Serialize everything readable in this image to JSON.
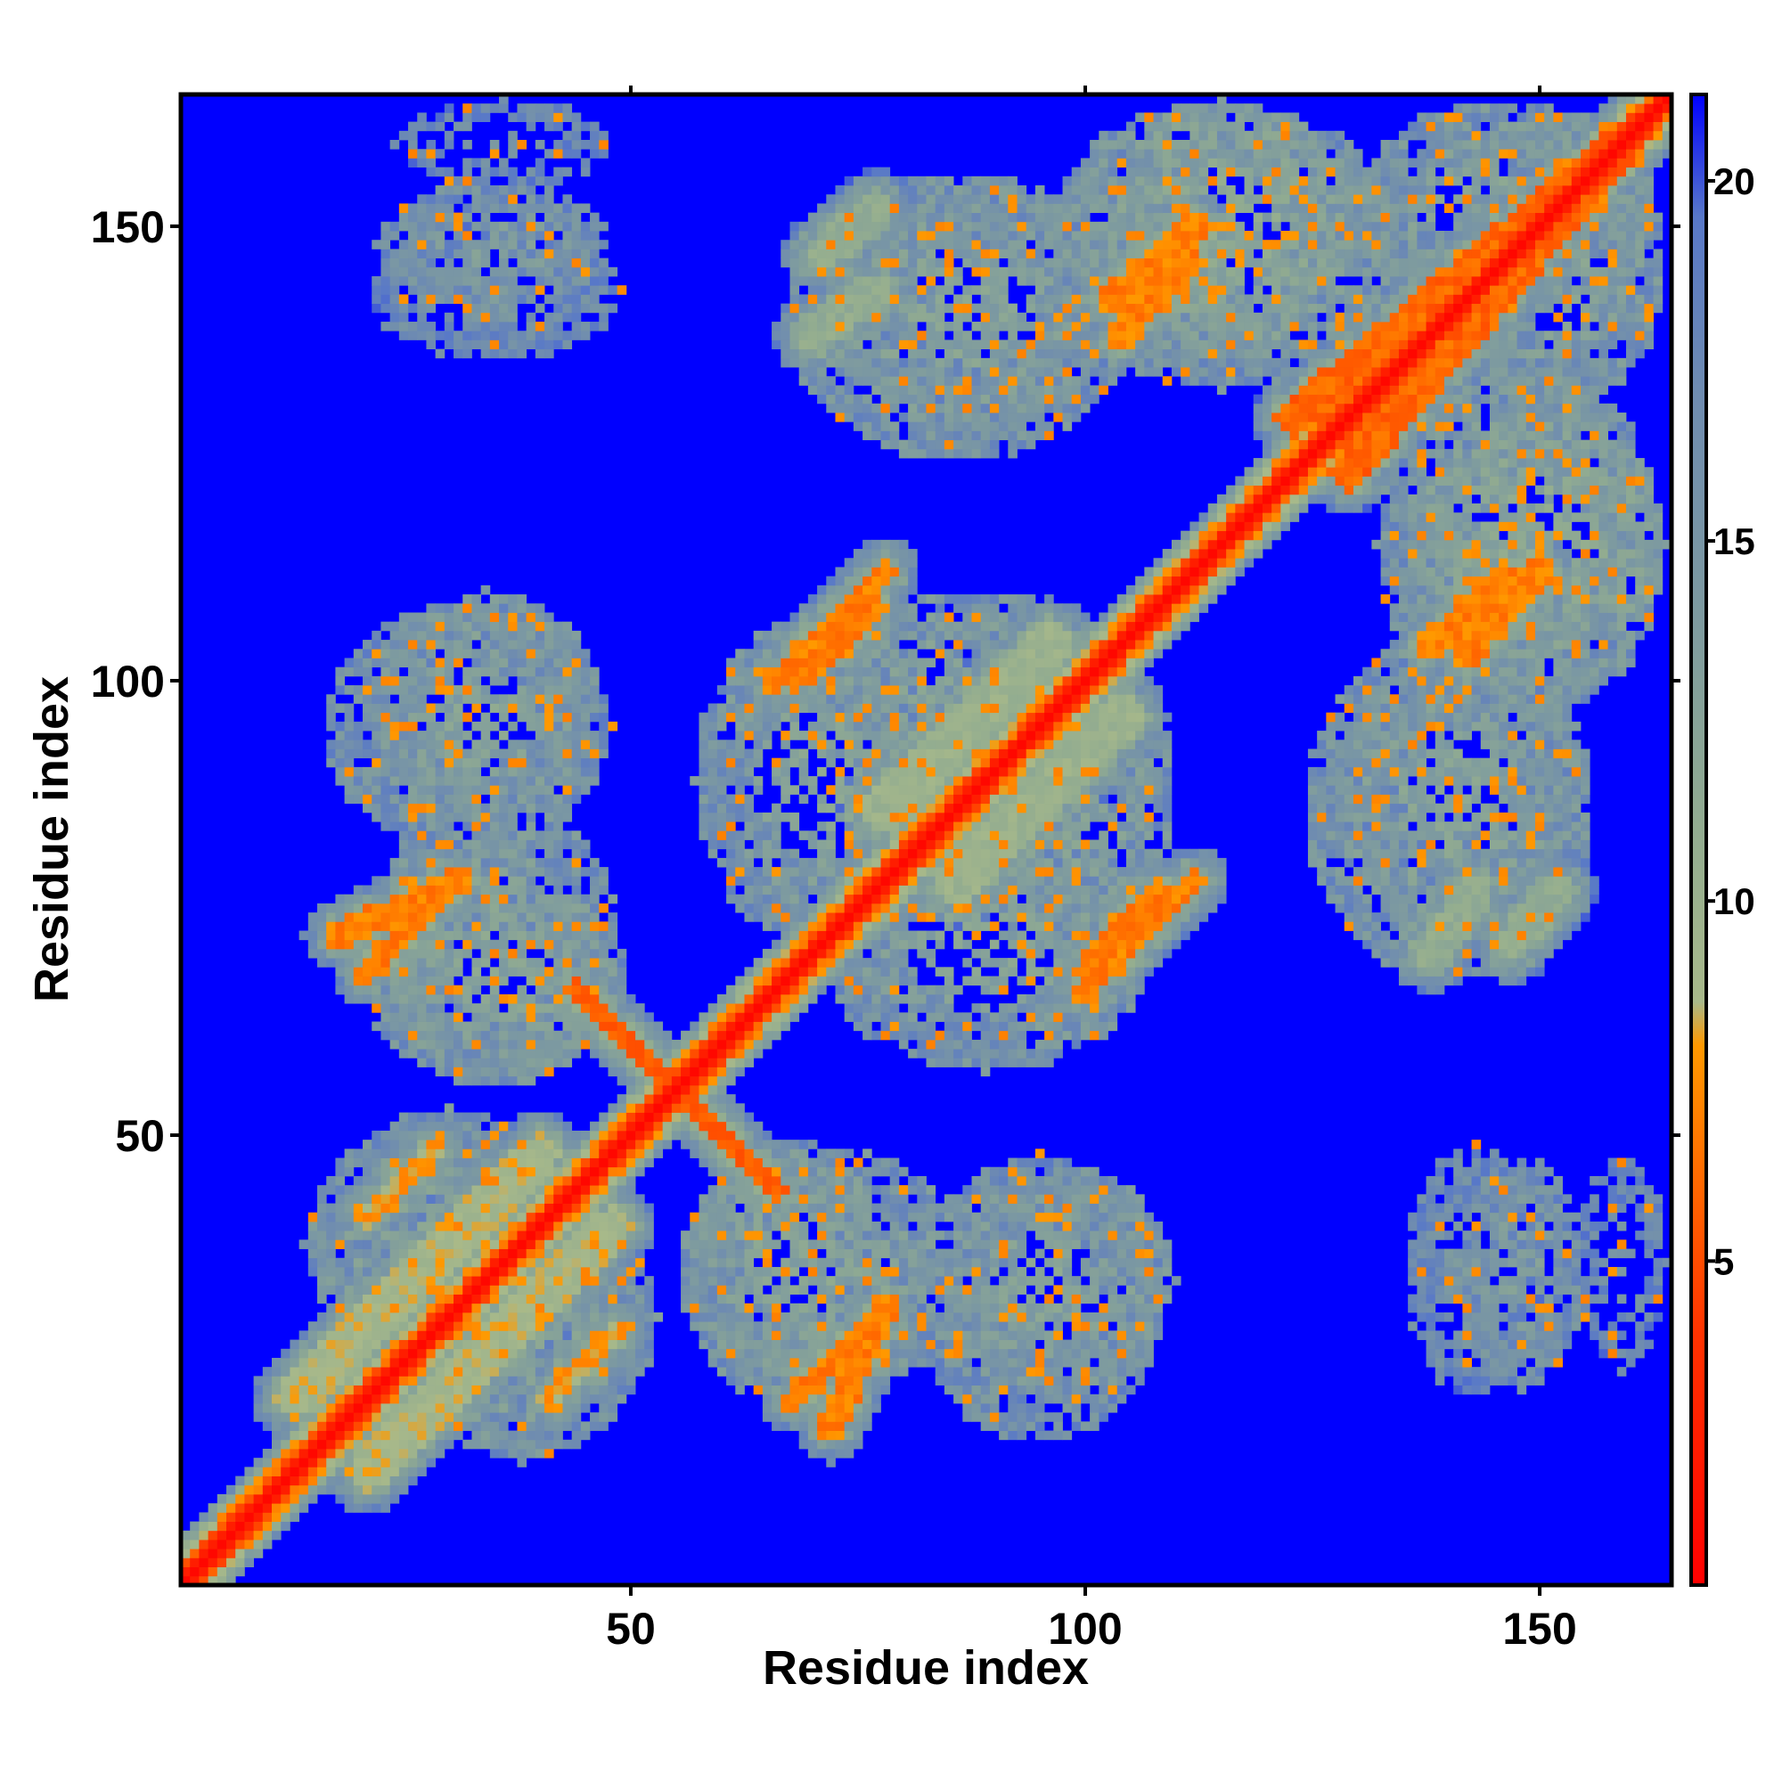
{
  "chart_data": {
    "type": "heatmap",
    "title": "",
    "xlabel": "Residue index",
    "ylabel": "Residue index",
    "n_residues": 164,
    "xlim": [
      1,
      164
    ],
    "ylim": [
      1,
      164
    ],
    "x_ticks": [
      50,
      100,
      150
    ],
    "y_ticks": [
      50,
      100,
      150
    ],
    "x_tick_labels": [
      "50",
      "100",
      "150"
    ],
    "y_tick_labels": [
      "50",
      "100",
      "150"
    ],
    "colorbar": {
      "range": [
        0.5,
        21.2
      ],
      "ticks": [
        5,
        10,
        15,
        20
      ],
      "tick_labels": [
        "5",
        "10",
        "15",
        "20"
      ],
      "stops": [
        {
          "value": 0.5,
          "color": "#ff0000"
        },
        {
          "value": 4.0,
          "color": "#ff3300"
        },
        {
          "value": 6.0,
          "color": "#ff6600"
        },
        {
          "value": 8.0,
          "color": "#ff9900"
        },
        {
          "value": 8.6,
          "color": "#a8b98a"
        },
        {
          "value": 11.0,
          "color": "#92ac90"
        },
        {
          "value": 14.0,
          "color": "#7d9aa0"
        },
        {
          "value": 17.0,
          "color": "#6f8cb0"
        },
        {
          "value": 19.5,
          "color": "#5878c8"
        },
        {
          "value": 21.2,
          "color": "#0000ff"
        }
      ]
    },
    "background_value": 21.2,
    "diagonal": {
      "core_value": 2.5,
      "band_width": 3
    },
    "contact_segments": [
      {
        "start": [
          13,
          21
        ],
        "end": [
          40,
          48
        ],
        "value": 9,
        "width": 2.2,
        "note": "secondary diagonal band"
      },
      {
        "start": [
          78,
          86
        ],
        "end": [
          96,
          104
        ],
        "value": 10,
        "width": 2.5
      },
      {
        "start": [
          44,
          66
        ],
        "end": [
          55,
          55
        ],
        "value": 6,
        "width": 1.2
      },
      {
        "start": [
          55,
          55
        ],
        "end": [
          65,
          45
        ],
        "value": 6,
        "width": 1.2
      },
      {
        "start": [
          18,
          72
        ],
        "end": [
          31,
          78
        ],
        "value": 7,
        "width": 1.5
      },
      {
        "start": [
          66,
          100
        ],
        "end": [
          78,
          112
        ],
        "value": 7,
        "width": 1.4
      },
      {
        "start": [
          100,
          68
        ],
        "end": [
          108,
          77
        ],
        "value": 7,
        "width": 1.4
      },
      {
        "start": [
          68,
          21
        ],
        "end": [
          75,
          28
        ],
        "value": 7,
        "width": 1.3
      },
      {
        "start": [
          41,
          21
        ],
        "end": [
          48,
          28
        ],
        "value": 8,
        "width": 1.3
      },
      {
        "start": [
          123,
          129
        ],
        "end": [
          160,
          160
        ],
        "value": 6,
        "width": 2.0
      },
      {
        "start": [
          103,
          142
        ],
        "end": [
          112,
          150
        ],
        "value": 7,
        "width": 1.5
      },
      {
        "start": [
          138,
          104
        ],
        "end": [
          146,
          111
        ],
        "value": 7,
        "width": 1.5
      },
      {
        "start": [
          71,
          147
        ],
        "end": [
          77,
          152
        ],
        "value": 11,
        "width": 1.8
      },
      {
        "start": [
          138,
          70
        ],
        "end": [
          143,
          77
        ],
        "value": 11,
        "width": 1.8
      }
    ],
    "contact_blobs": [
      {
        "center": [
          35,
          148
        ],
        "radii": [
          13,
          7
        ],
        "value": 15,
        "density": 0.55
      },
      {
        "center": [
          34,
          97
        ],
        "radii": [
          13,
          13
        ],
        "value": 14,
        "density": 0.6
      },
      {
        "center": [
          35,
          67
        ],
        "radii": [
          15,
          11
        ],
        "value": 14,
        "density": 0.6
      },
      {
        "center": [
          38,
          30
        ],
        "radii": [
          15,
          16
        ],
        "value": 14,
        "density": 0.6
      },
      {
        "center": [
          71,
          35
        ],
        "radii": [
          16,
          14
        ],
        "value": 14,
        "density": 0.6
      },
      {
        "center": [
          71,
          89
        ],
        "radii": [
          14,
          19
        ],
        "value": 14,
        "density": 0.6
      },
      {
        "center": [
          95,
          32
        ],
        "radii": [
          14,
          16
        ],
        "value": 15,
        "density": 0.55
      },
      {
        "center": [
          97,
          88
        ],
        "radii": [
          13,
          18
        ],
        "value": 14,
        "density": 0.6
      },
      {
        "center": [
          86,
          140
        ],
        "radii": [
          19,
          16
        ],
        "value": 14,
        "density": 0.6
      },
      {
        "center": [
          116,
          150
        ],
        "radii": [
          14,
          14
        ],
        "value": 13,
        "density": 0.6
      },
      {
        "center": [
          146,
          152
        ],
        "radii": [
          17,
          12
        ],
        "value": 14,
        "density": 0.6
      },
      {
        "center": [
          148,
          115
        ],
        "radii": [
          16,
          20
        ],
        "value": 14,
        "density": 0.6
      },
      {
        "center": [
          141,
          89
        ],
        "radii": [
          14,
          13
        ],
        "value": 15,
        "density": 0.55
      },
      {
        "center": [
          143,
          35
        ],
        "radii": [
          8,
          14
        ],
        "value": 16,
        "density": 0.5
      },
      {
        "center": [
          159,
          36
        ],
        "radii": [
          5,
          12
        ],
        "value": 17,
        "density": 0.4
      }
    ]
  }
}
